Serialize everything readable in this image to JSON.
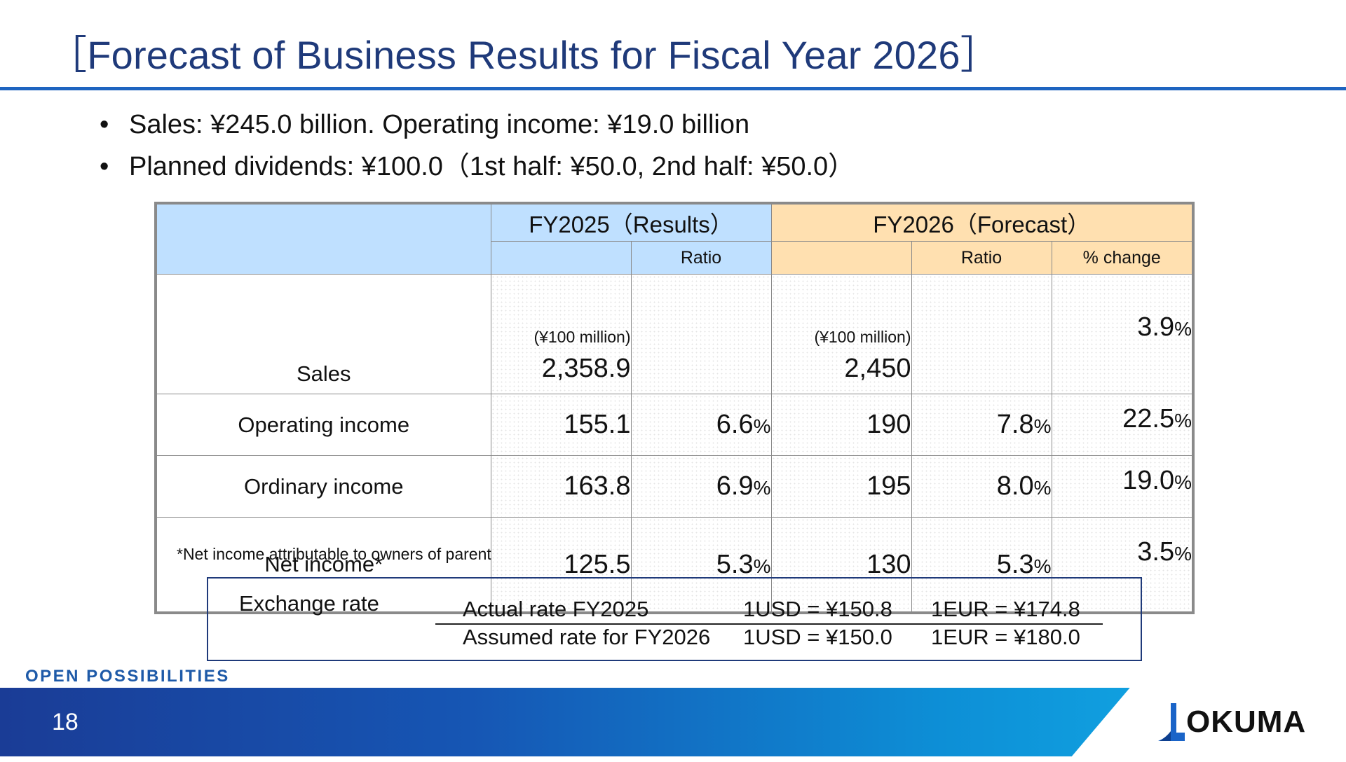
{
  "title": "［Forecast of Business Results for Fiscal Year 2026］",
  "bullets": [
    "Sales: ¥245.0 billion. Operating income: ¥19.0 billion",
    "Planned dividends: ¥100.0（1st half: ¥50.0, 2nd half: ¥50.0）"
  ],
  "bullet_glyph": "•",
  "table": {
    "group_fy2025": "FY2025（Results）",
    "group_fy2026": "FY2026（Forecast）",
    "sub_ratio": "Ratio",
    "sub_change": "% change",
    "unit": "(¥100 million)",
    "pct_sign": "%",
    "rows": [
      {
        "label": "Sales",
        "fy2025": "2,358.9",
        "fy2025_ratio": "",
        "fy2026": "2,450",
        "fy2026_ratio": "",
        "change": "3.9"
      },
      {
        "label": "Operating income",
        "fy2025": "155.1",
        "fy2025_ratio": "6.6",
        "fy2026": "190",
        "fy2026_ratio": "7.8",
        "change": "22.5"
      },
      {
        "label": "Ordinary income",
        "fy2025": "163.8",
        "fy2025_ratio": "6.9",
        "fy2026": "195",
        "fy2026_ratio": "8.0",
        "change": "19.0"
      },
      {
        "label": "Net income*",
        "fy2025": "125.5",
        "fy2025_ratio": "5.3",
        "fy2026": "130",
        "fy2026_ratio": "5.3",
        "change": "3.5"
      }
    ]
  },
  "footnote": "*Net income attributable to owners of parent",
  "exchange": {
    "label": "Exchange rate",
    "rows": [
      {
        "name": "Actual rate FY2025",
        "usd": "1USD = ¥150.8",
        "eur": "1EUR = ¥174.8"
      },
      {
        "name": "Assumed rate for FY2026",
        "usd": "1USD = ¥150.0",
        "eur": "1EUR = ¥180.0"
      }
    ]
  },
  "tagline": "OPEN POSSIBILITIES",
  "page_number": "18",
  "logo_text": "OKUMA",
  "colors": {
    "title": "#1f3a7a",
    "rule": "#1e64c0",
    "header_blue": "#bfe0ff",
    "header_orange": "#ffe0b0",
    "tagline": "#1e5aa8"
  }
}
